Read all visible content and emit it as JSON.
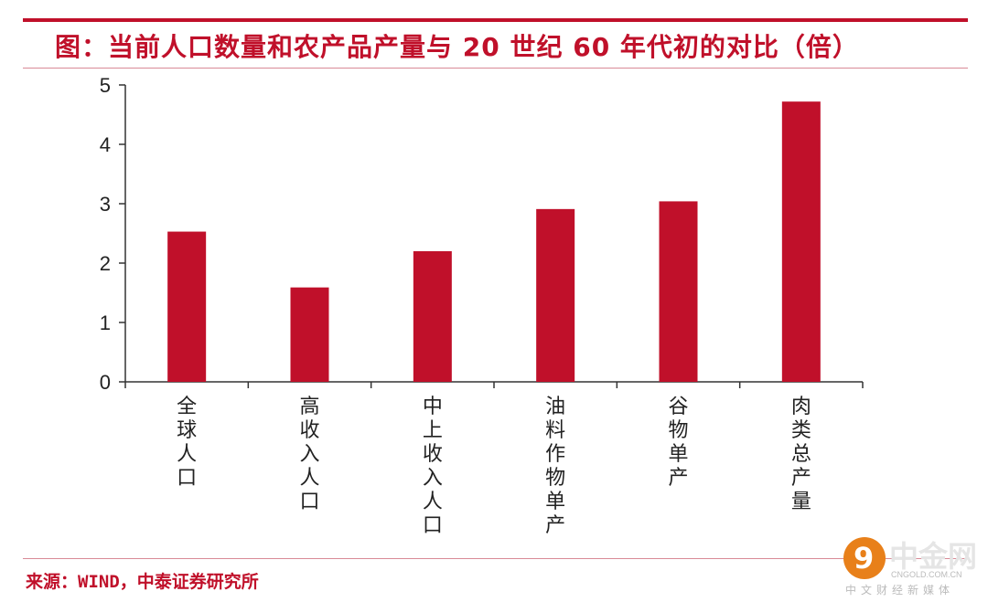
{
  "header": {
    "title": "图：当前人口数量和农产品产量与 20 世纪 60 年代初的对比（倍）"
  },
  "chart_data": {
    "type": "bar",
    "title": "图：当前人口数量和农产品产量与 20 世纪 60 年代初的对比（倍）",
    "xlabel": "",
    "ylabel": "",
    "categories": [
      "全球人口",
      "高收入人口",
      "中上收入人口",
      "油料作物单产",
      "谷物单产",
      "肉类总产量"
    ],
    "values": [
      2.53,
      1.59,
      2.2,
      2.91,
      3.04,
      4.72
    ],
    "ylim": [
      0,
      5
    ],
    "yticks": [
      "0",
      "1",
      "2",
      "3",
      "4",
      "5"
    ],
    "grid": false,
    "bar_color": "#c0102a"
  },
  "footer": {
    "source": "来源：WIND，中泰证券研究所"
  },
  "watermark": {
    "mark": "9",
    "name": "中金网",
    "url": "CNGOLD.COM.CN",
    "tagline": "中文财经新媒体"
  },
  "colors": {
    "accent": "#c0102a",
    "axis": "#333333"
  }
}
